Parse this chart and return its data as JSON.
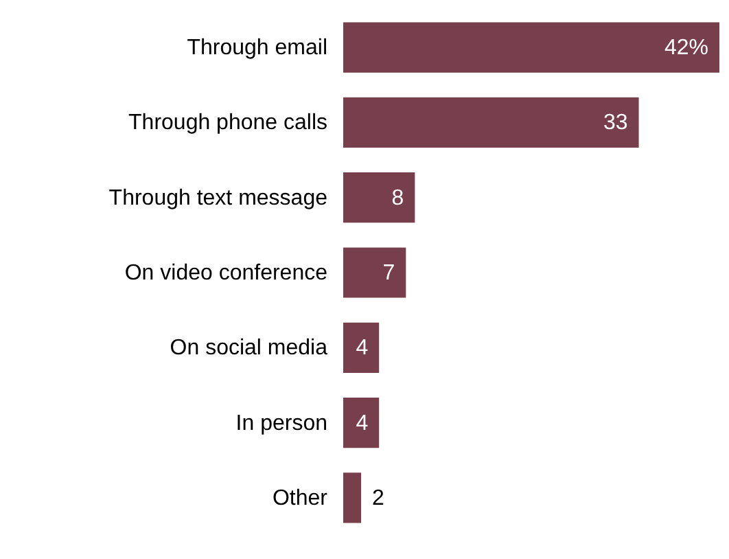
{
  "chart_data": {
    "type": "bar",
    "orientation": "horizontal",
    "categories": [
      "Through email",
      "Through phone calls",
      "Through text message",
      "On video conference",
      "On social media",
      "In person",
      "Other"
    ],
    "values": [
      42,
      33,
      8,
      7,
      4,
      4,
      2
    ],
    "value_labels": [
      "42%",
      "33",
      "8",
      "7",
      "4",
      "4",
      "2"
    ],
    "color": "#763f4b",
    "grid": false
  }
}
